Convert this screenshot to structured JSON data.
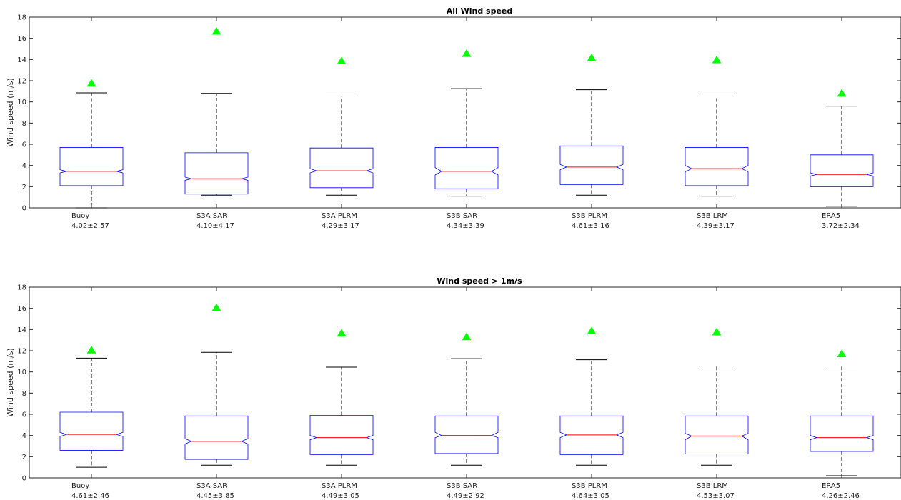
{
  "chart_data": [
    {
      "type": "boxplot",
      "title": "All Wind speed",
      "ylabel": "Wind speed (m/s)",
      "ylim": [
        0,
        18
      ],
      "yticks": [
        "0",
        "2",
        "4",
        "6",
        "8",
        "10",
        "12",
        "14",
        "16",
        "18"
      ],
      "notched": true,
      "marker": "triangle",
      "colors": {
        "box": "#0000ff",
        "median": "#ff0000",
        "whisker": "#000000",
        "marker": "#00ff00"
      },
      "categories": [
        {
          "name": "Buoy",
          "stats": "4.02±2.57",
          "whisker_low": 0.0,
          "q1": 2.1,
          "median": 3.45,
          "q3": 5.7,
          "whisker_high": 10.85,
          "notch_low": 3.3,
          "notch_high": 3.6,
          "marker": 11.8
        },
        {
          "name": "S3A SAR",
          "stats": "4.10±4.17",
          "whisker_low": 1.2,
          "q1": 1.3,
          "median": 2.75,
          "q3": 5.2,
          "whisker_high": 10.8,
          "notch_low": 2.6,
          "notch_high": 2.9,
          "marker": 16.7
        },
        {
          "name": "S3A PLRM",
          "stats": "4.29±3.17",
          "whisker_low": 1.2,
          "q1": 1.9,
          "median": 3.5,
          "q3": 5.65,
          "whisker_high": 10.55,
          "notch_low": 3.3,
          "notch_high": 3.7,
          "marker": 13.9
        },
        {
          "name": "S3B SAR",
          "stats": "4.34±3.39",
          "whisker_low": 1.1,
          "q1": 1.8,
          "median": 3.45,
          "q3": 5.7,
          "whisker_high": 11.25,
          "notch_low": 3.1,
          "notch_high": 3.8,
          "marker": 14.6
        },
        {
          "name": "S3B PLRM",
          "stats": "4.61±3.16",
          "whisker_low": 1.2,
          "q1": 2.2,
          "median": 3.85,
          "q3": 5.85,
          "whisker_high": 11.15,
          "notch_low": 3.6,
          "notch_high": 4.1,
          "marker": 14.2
        },
        {
          "name": "S3B LRM",
          "stats": "4.39±3.17",
          "whisker_low": 1.1,
          "q1": 2.1,
          "median": 3.7,
          "q3": 5.7,
          "whisker_high": 10.55,
          "notch_low": 3.4,
          "notch_high": 4.0,
          "marker": 14.0
        },
        {
          "name": "ERA5",
          "stats": "3.72±2.34",
          "whisker_low": 0.15,
          "q1": 2.0,
          "median": 3.15,
          "q3": 5.0,
          "whisker_high": 9.6,
          "notch_low": 3.0,
          "notch_high": 3.3,
          "marker": 10.85
        }
      ]
    },
    {
      "type": "boxplot",
      "title": "Wind speed > 1m/s",
      "ylabel": "Wind speed (m/s)",
      "ylim": [
        0,
        18
      ],
      "yticks": [
        "0",
        "2",
        "4",
        "6",
        "8",
        "10",
        "12",
        "14",
        "16",
        "18"
      ],
      "notched": true,
      "marker": "triangle",
      "colors": {
        "box": "#0000ff",
        "median": "#ff0000",
        "whisker": "#000000",
        "marker": "#00ff00"
      },
      "categories": [
        {
          "name": "Buoy",
          "stats": "4.61±2.46",
          "whisker_low": 1.0,
          "q1": 2.6,
          "median": 4.1,
          "q3": 6.2,
          "whisker_high": 11.3,
          "notch_low": 3.9,
          "notch_high": 4.3,
          "marker": 12.1
        },
        {
          "name": "S3A SAR",
          "stats": "4.45±3.85",
          "whisker_low": 1.2,
          "q1": 1.75,
          "median": 3.45,
          "q3": 5.85,
          "whisker_high": 11.85,
          "notch_low": 3.2,
          "notch_high": 3.7,
          "marker": 16.1
        },
        {
          "name": "S3A PLRM",
          "stats": "4.49±3.05",
          "whisker_low": 1.2,
          "q1": 2.2,
          "median": 3.8,
          "q3": 5.9,
          "whisker_high": 10.45,
          "notch_low": 3.6,
          "notch_high": 4.0,
          "marker": 13.7
        },
        {
          "name": "S3B SAR",
          "stats": "4.49±2.92",
          "whisker_low": 1.2,
          "q1": 2.3,
          "median": 4.0,
          "q3": 5.85,
          "whisker_high": 11.25,
          "notch_low": 3.8,
          "notch_high": 4.3,
          "marker": 13.35
        },
        {
          "name": "S3B PLRM",
          "stats": "4.64±3.05",
          "whisker_low": 1.2,
          "q1": 2.2,
          "median": 4.05,
          "q3": 5.85,
          "whisker_high": 11.15,
          "notch_low": 3.8,
          "notch_high": 4.3,
          "marker": 13.9
        },
        {
          "name": "S3B LRM",
          "stats": "4.53±3.07",
          "whisker_low": 1.2,
          "q1": 2.25,
          "median": 3.95,
          "q3": 5.85,
          "whisker_high": 10.55,
          "notch_low": 3.6,
          "notch_high": 4.2,
          "marker": 13.8
        },
        {
          "name": "ERA5",
          "stats": "4.26±2.46",
          "whisker_low": 0.2,
          "q1": 2.5,
          "median": 3.8,
          "q3": 5.85,
          "whisker_high": 10.55,
          "notch_low": 3.6,
          "notch_high": 4.0,
          "marker": 11.75
        }
      ]
    }
  ]
}
